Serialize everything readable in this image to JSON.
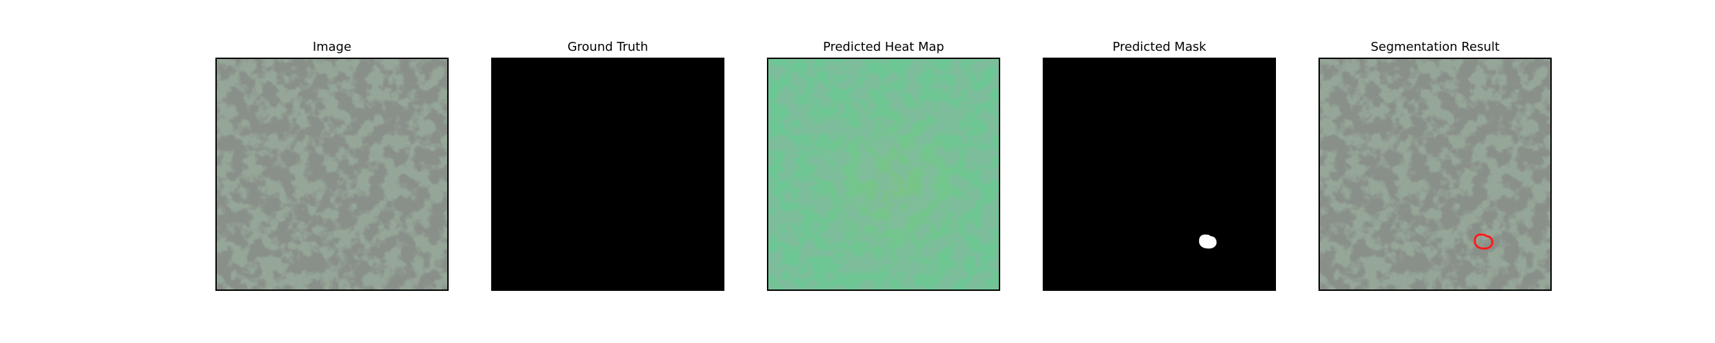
{
  "panels": [
    {
      "title": "Image",
      "type": "texture"
    },
    {
      "title": "Ground Truth",
      "type": "black-mask"
    },
    {
      "title": "Predicted Heat Map",
      "type": "heatmap"
    },
    {
      "title": "Predicted Mask",
      "type": "predicted-mask"
    },
    {
      "title": "Segmentation Result",
      "type": "segmentation-overlay"
    }
  ],
  "colors": {
    "texture_base": "#93a596",
    "texture_dark": "#3f4540",
    "heatmap_base": "#6dc794",
    "heatmap_dark": "#3e8d61",
    "mask_background": "#000000",
    "mask_region": "#ffffff",
    "contour": "#ff1a1a"
  }
}
